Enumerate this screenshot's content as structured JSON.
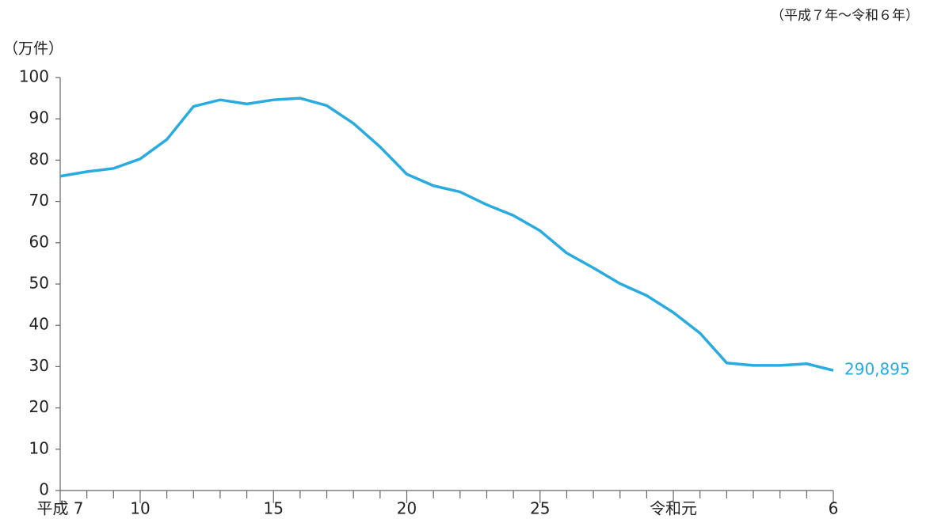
{
  "chart_data": {
    "type": "line",
    "note": "（平成７年～令和６年）",
    "y_label": "（万件）",
    "categories": [
      "平成 7",
      null,
      null,
      "10",
      null,
      null,
      null,
      null,
      "15",
      null,
      null,
      null,
      null,
      "20",
      null,
      null,
      null,
      null,
      "25",
      null,
      null,
      null,
      null,
      "令和元",
      null,
      null,
      null,
      null,
      null,
      "6"
    ],
    "series": [
      {
        "color": "#29abe0",
        "values": [
          76.1,
          77.2,
          78.0,
          80.3,
          85.0,
          93.0,
          94.6,
          93.6,
          94.6,
          95.0,
          93.2,
          88.9,
          83.2,
          76.6,
          73.8,
          72.3,
          69.2,
          66.6,
          62.9,
          57.5,
          53.9,
          50.1,
          47.2,
          43.1,
          38.1,
          30.9,
          30.3,
          30.3,
          30.7,
          29.0895
        ],
        "value_labels": [
          null,
          null,
          null,
          null,
          null,
          null,
          null,
          null,
          null,
          null,
          null,
          null,
          null,
          null,
          null,
          null,
          null,
          null,
          null,
          null,
          null,
          null,
          null,
          null,
          null,
          null,
          null,
          null,
          null,
          "290,895"
        ]
      }
    ],
    "ylim": [
      0,
      100
    ],
    "yticks": [
      0,
      10,
      20,
      30,
      40,
      50,
      60,
      70,
      80,
      90,
      100
    ]
  }
}
